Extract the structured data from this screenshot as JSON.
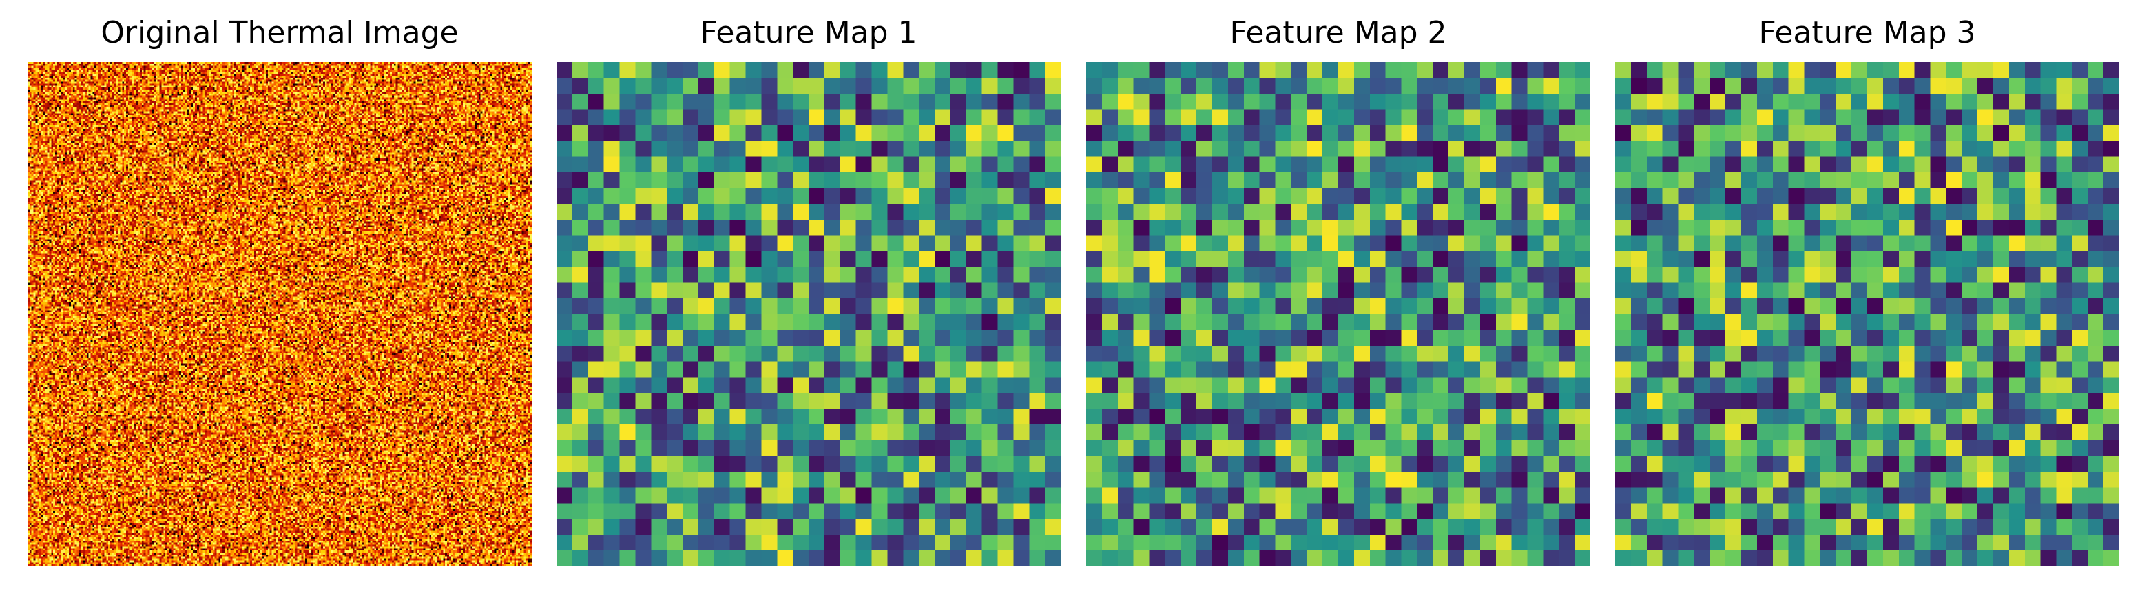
{
  "chart_data": [
    {
      "type": "heatmap",
      "title": "Original Thermal Image",
      "colormap": "hot",
      "grid_size": [
        256,
        256
      ],
      "value_range": [
        0,
        1
      ],
      "axis": "off",
      "colors": [
        "#000000",
        "#8b0000",
        "#e02000",
        "#ff7a00",
        "#ffd000",
        "#ffff6a"
      ]
    },
    {
      "type": "heatmap",
      "title": "Feature Map 1",
      "colormap": "viridis",
      "grid_size": [
        32,
        32
      ],
      "value_range": [
        0,
        1
      ],
      "axis": "off",
      "colors": [
        "#440154",
        "#3b528b",
        "#21918c",
        "#5ec962",
        "#fde725"
      ]
    },
    {
      "type": "heatmap",
      "title": "Feature Map 2",
      "colormap": "viridis",
      "grid_size": [
        32,
        32
      ],
      "value_range": [
        0,
        1
      ],
      "axis": "off",
      "colors": [
        "#440154",
        "#3b528b",
        "#21918c",
        "#5ec962",
        "#fde725"
      ]
    },
    {
      "type": "heatmap",
      "title": "Feature Map 3",
      "colormap": "viridis",
      "grid_size": [
        32,
        32
      ],
      "value_range": [
        0,
        1
      ],
      "axis": "off",
      "colors": [
        "#440154",
        "#3b528b",
        "#21918c",
        "#5ec962",
        "#fde725"
      ]
    }
  ]
}
